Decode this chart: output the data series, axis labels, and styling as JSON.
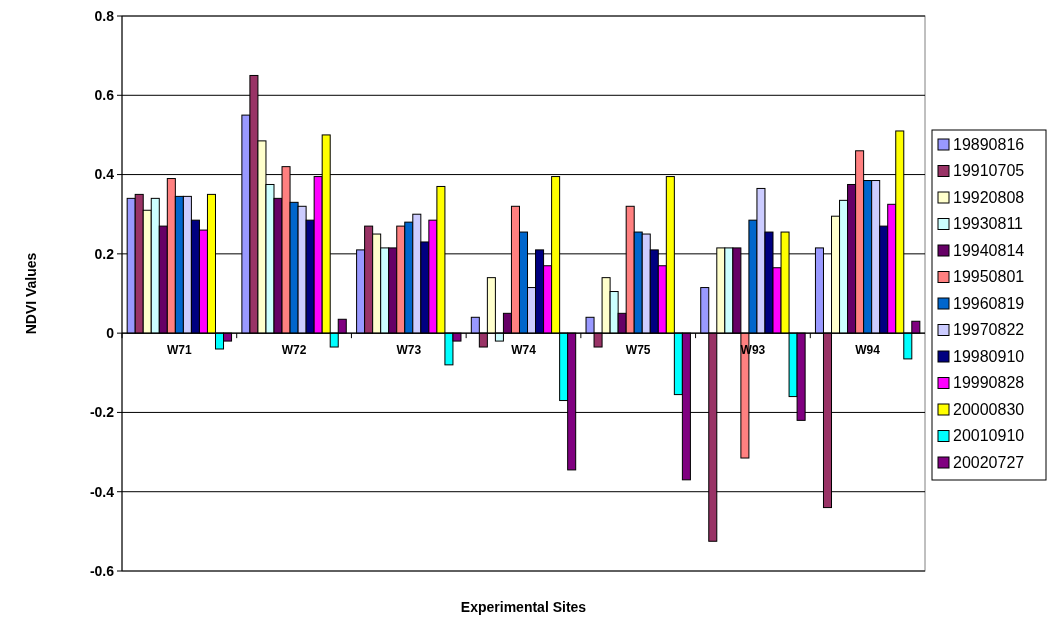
{
  "chart_data": {
    "type": "bar",
    "xlabel": "Experimental Sites",
    "ylabel": "NDVI Values",
    "categories": [
      "W71",
      "W72",
      "W73",
      "W74",
      "W75",
      "W93",
      "W94"
    ],
    "series": [
      {
        "name": "19890816",
        "color": "#9999ff",
        "values": [
          0.34,
          0.55,
          0.21,
          0.04,
          0.04,
          0.115,
          0.215
        ]
      },
      {
        "name": "19910705",
        "color": "#993366",
        "values": [
          0.35,
          0.65,
          0.27,
          -0.035,
          -0.035,
          -0.525,
          -0.44
        ]
      },
      {
        "name": "19920808",
        "color": "#ffffcc",
        "values": [
          0.31,
          0.485,
          0.25,
          0.14,
          0.14,
          0.215,
          0.295
        ]
      },
      {
        "name": "19930811",
        "color": "#ccffff",
        "values": [
          0.34,
          0.375,
          0.215,
          -0.02,
          0.105,
          0.215,
          0.335
        ]
      },
      {
        "name": "19940814",
        "color": "#660066",
        "values": [
          0.27,
          0.34,
          0.215,
          0.05,
          0.05,
          0.215,
          0.375
        ]
      },
      {
        "name": "19950801",
        "color": "#ff8080",
        "values": [
          0.39,
          0.42,
          0.27,
          0.32,
          0.32,
          -0.315,
          0.46
        ]
      },
      {
        "name": "19960819",
        "color": "#0066cc",
        "values": [
          0.345,
          0.33,
          0.28,
          0.255,
          0.255,
          0.285,
          0.385
        ]
      },
      {
        "name": "19970822",
        "color": "#ccccff",
        "values": [
          0.345,
          0.32,
          0.3,
          0.115,
          0.25,
          0.365,
          0.385
        ]
      },
      {
        "name": "19980910",
        "color": "#000080",
        "values": [
          0.285,
          0.285,
          0.23,
          0.21,
          0.21,
          0.255,
          0.27
        ]
      },
      {
        "name": "19990828",
        "color": "#ff00ff",
        "values": [
          0.26,
          0.395,
          0.285,
          0.17,
          0.17,
          0.165,
          0.325
        ]
      },
      {
        "name": "20000830",
        "color": "#ffff00",
        "values": [
          0.35,
          0.5,
          0.37,
          0.395,
          0.395,
          0.255,
          0.51
        ]
      },
      {
        "name": "20010910",
        "color": "#00ffff",
        "values": [
          -0.04,
          -0.035,
          -0.08,
          -0.17,
          -0.155,
          -0.16,
          -0.065
        ]
      },
      {
        "name": "20020727",
        "color": "#800080",
        "values": [
          -0.02,
          0.035,
          -0.02,
          -0.345,
          -0.37,
          -0.22,
          0.03
        ]
      }
    ],
    "ylim": [
      -0.6,
      0.8
    ],
    "yticks": [
      -0.6,
      -0.4,
      -0.2,
      0,
      0.2,
      0.4,
      0.6,
      0.8
    ],
    "grid": "y",
    "legend": "right"
  }
}
